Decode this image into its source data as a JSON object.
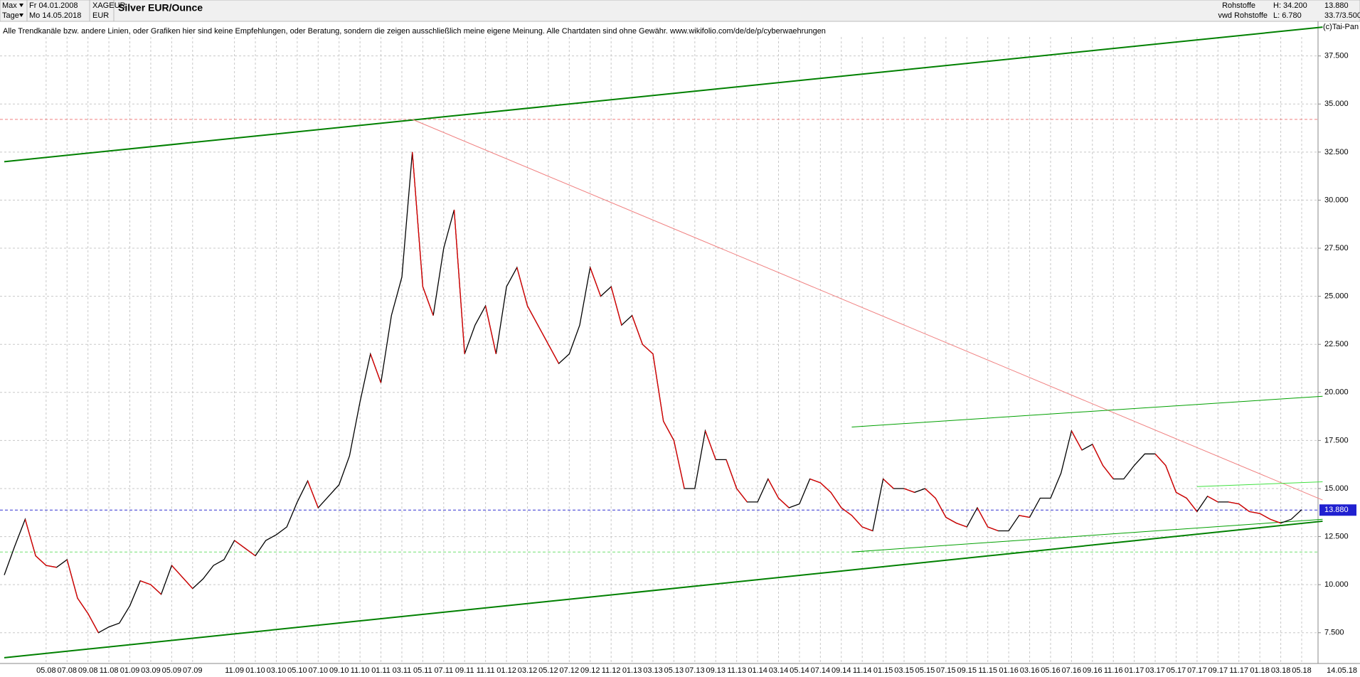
{
  "header": {
    "period": "Max",
    "start": "Fr 04.01.2008",
    "interval": "Tage",
    "end": "Mo 14.05.2018",
    "symbol": "XAGEUR",
    "currency": "EUR",
    "market": "Rohstoffe",
    "source": "vwd Rohstoffe",
    "high": "H: 34.200",
    "low": "L: 6.780",
    "last": "13.880",
    "range": "33.7/3.500",
    "copyright": "(c)Tai-Pan"
  },
  "chart_data": {
    "type": "line",
    "title": "Silver EUR/Ounce",
    "annotation": "Alle Trendkanäle bzw. andere Linien, oder Grafiken hier sind keine Empfehlungen, oder Beratung, sondern die zeigen ausschließlich meine eigene Meinung. Alle Chartdaten sind ohne Gewähr.  www.wikifolio.com/de/de/p/cyberwaehrungen",
    "last_date": "14.05.18",
    "categories": [
      null,
      null,
      null,
      null,
      "05.08",
      null,
      "07.08",
      null,
      "09.08",
      null,
      "11.08",
      null,
      "01.09",
      null,
      "03.09",
      null,
      "05.09",
      null,
      "07.09",
      null,
      null,
      null,
      "11.09",
      null,
      "01.10",
      null,
      "03.10",
      null,
      "05.10",
      null,
      "07.10",
      null,
      "09.10",
      null,
      "11.10",
      null,
      "01.11",
      null,
      "03.11",
      null,
      "05.11",
      null,
      "07.11",
      null,
      "09.11",
      null,
      "11.11",
      null,
      "01.12",
      null,
      "03.12",
      null,
      "05.12",
      null,
      "07.12",
      null,
      "09.12",
      null,
      "11.12",
      null,
      "01.13",
      null,
      "03.13",
      null,
      "05.13",
      null,
      "07.13",
      null,
      "09.13",
      null,
      "11.13",
      null,
      "01.14",
      null,
      "03.14",
      null,
      "05.14",
      null,
      "07.14",
      null,
      "09.14",
      null,
      "11.14",
      null,
      "01.15",
      null,
      "03.15",
      null,
      "05.15",
      null,
      "07.15",
      null,
      "09.15",
      null,
      "11.15",
      null,
      "01.16",
      null,
      "03.16",
      null,
      "05.16",
      null,
      "07.16",
      null,
      "09.16",
      null,
      "11.16",
      null,
      "01.17",
      null,
      "03.17",
      null,
      "05.17",
      null,
      "07.17",
      null,
      "09.17",
      null,
      "11.17",
      null,
      "01.18",
      null,
      "03.18",
      null,
      "05.18"
    ],
    "series": [
      {
        "color": "#000000",
        "values": [
          10.5,
          12.0,
          13.4,
          11.5,
          11.0,
          10.9,
          11.3,
          9.3,
          8.5,
          7.5,
          7.8,
          8.0,
          8.9,
          10.2,
          10.0,
          9.5,
          11.0,
          10.4,
          9.8,
          10.3,
          11.0,
          11.3,
          12.3,
          11.9,
          11.5,
          12.3,
          12.6,
          13.0,
          14.3,
          15.4,
          14.0,
          14.6,
          15.2,
          16.7,
          19.5,
          22.0,
          20.5,
          24.0,
          26.0,
          32.5,
          25.5,
          24.0,
          27.5,
          29.5,
          22.0,
          23.5,
          24.5,
          22.0,
          25.5,
          26.5,
          24.5,
          23.5,
          22.5,
          21.5,
          22.0,
          23.5,
          26.5,
          25.0,
          25.5,
          23.5,
          24.0,
          22.5,
          22.0,
          18.5,
          17.5,
          15.0,
          15.0,
          18.0,
          16.5,
          16.5,
          15.0,
          14.3,
          14.3,
          15.5,
          14.5,
          14.0,
          14.2,
          15.5,
          15.3,
          14.8,
          14.0,
          13.6,
          13.0,
          12.8,
          15.5,
          15.0,
          15.0,
          14.8,
          15.0,
          14.5,
          13.5,
          13.2,
          13.0,
          14.0,
          13.0,
          12.8,
          12.8,
          13.6,
          13.5,
          14.5,
          14.5,
          15.8,
          18.0,
          17.0,
          17.3,
          16.2,
          15.5,
          15.5,
          16.2,
          16.8,
          16.8,
          16.2,
          14.8,
          14.5,
          13.8,
          14.6,
          14.3,
          14.3,
          14.2,
          13.8,
          13.7,
          13.4,
          13.2,
          13.4,
          13.9
        ]
      }
    ],
    "ylim": [
      5.9,
      39.3
    ],
    "yticks": [
      {
        "value": 7.5,
        "label": "7.500"
      },
      {
        "value": 10,
        "label": "10.000"
      },
      {
        "value": 12.5,
        "label": "12.500"
      },
      {
        "value": 15,
        "label": "15.000"
      },
      {
        "value": 17.5,
        "label": "17.500"
      },
      {
        "value": 20,
        "label": "20.000"
      },
      {
        "value": 22.5,
        "label": "22.500"
      },
      {
        "value": 25,
        "label": "25.000"
      },
      {
        "value": 27.5,
        "label": "27.500"
      },
      {
        "value": 30,
        "label": "30.000"
      },
      {
        "value": 32.5,
        "label": "32.500"
      },
      {
        "value": 35,
        "label": "35.000"
      },
      {
        "value": 37.5,
        "label": "37.500"
      }
    ],
    "grid": true,
    "last_value": 13.88,
    "hlines": [
      {
        "value": 34.2,
        "color": "#f08080"
      },
      {
        "value": 13.88,
        "color": "#3030d0"
      },
      {
        "value": 11.7,
        "color": "#70e070"
      }
    ],
    "trendlines": [
      {
        "from": [
          0,
          32.0
        ],
        "to": [
          126,
          39.0
        ],
        "color": "#008000",
        "width": 2
      },
      {
        "from": [
          0,
          6.2
        ],
        "to": [
          126,
          13.3
        ],
        "color": "#008000",
        "width": 2
      },
      {
        "from": [
          39,
          34.2
        ],
        "to": [
          126,
          14.4
        ],
        "color": "#f08080",
        "width": 1
      },
      {
        "from": [
          81,
          18.2
        ],
        "to": [
          126,
          19.8
        ],
        "color": "#00a000",
        "width": 1
      },
      {
        "from": [
          81,
          11.7
        ],
        "to": [
          126,
          13.4
        ],
        "color": "#00a000",
        "width": 1
      },
      {
        "from": [
          114,
          15.1
        ],
        "to": [
          126,
          15.35
        ],
        "color": "#40e040",
        "width": 1
      }
    ]
  }
}
